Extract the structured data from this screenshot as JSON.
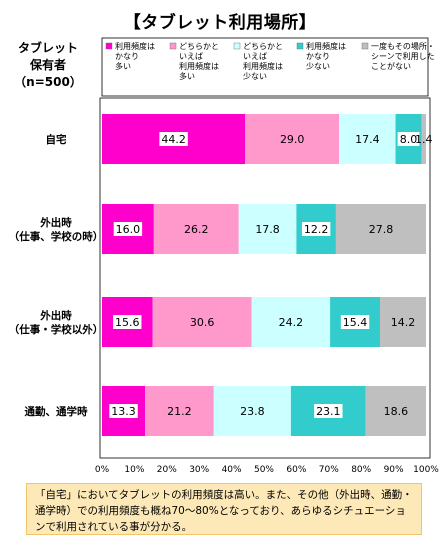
{
  "title": "【タブレット利用場所】",
  "holder_label": "タブレット\n保有者\n（n=500）",
  "note": "「自宅」においてタブレットの利用頻度は高い。また、その他（外出時、通勤・通学時）での利用頻度も概ね70～80%となっており、あらゆるシチュエーションで利用されている事が分かる。",
  "chart_data": {
    "type": "bar",
    "orientation": "horizontal-stacked-100",
    "categories": [
      [
        "自宅"
      ],
      [
        "外出時",
        "（仕事、学校の時）"
      ],
      [
        "外出時",
        "（仕事・学校以外）"
      ],
      [
        "通勤、通学時"
      ]
    ],
    "series": [
      {
        "name": "利用頻度はかなり多い",
        "legend_lines": [
          "利用頻度は",
          "かなり",
          "多い"
        ],
        "color": "#ff00cc",
        "values": [
          44.2,
          16.0,
          15.6,
          13.3
        ]
      },
      {
        "name": "どちらかといえば利用頻度は多い",
        "legend_lines": [
          "どちらかと",
          "いえば",
          "利用頻度は",
          "多い"
        ],
        "color": "#ff99cc",
        "values": [
          29.0,
          26.2,
          30.6,
          21.2
        ]
      },
      {
        "name": "どちらかといえば利用頻度は少ない",
        "legend_lines": [
          "どちらかと",
          "いえば",
          "利用頻度は",
          "少ない"
        ],
        "color": "#ccffff",
        "values": [
          17.4,
          17.8,
          24.2,
          23.8
        ]
      },
      {
        "name": "利用頻度はかなり少ない",
        "legend_lines": [
          "利用頻度は",
          "かなり",
          "少ない"
        ],
        "color": "#33cccc",
        "values": [
          8.0,
          12.2,
          15.4,
          23.1
        ]
      },
      {
        "name": "一度もその場所・シーンで利用したことがない",
        "legend_lines": [
          "一度もその場所・",
          "シーンで利用した",
          "ことがない"
        ],
        "color": "#bfbfbf",
        "values": [
          1.4,
          27.8,
          14.2,
          18.6
        ]
      }
    ],
    "value_labels": [
      [
        "44.2",
        "29.0",
        "17.4",
        "8.0",
        "1.4"
      ],
      [
        "16.0",
        "26.2",
        "17.8",
        "12.2",
        "27.8"
      ],
      [
        "15.6",
        "30.6",
        "24.2",
        "15.4",
        "14.2"
      ],
      [
        "13.3",
        "21.2",
        "23.8",
        "23.1",
        "18.6"
      ]
    ],
    "xlim": [
      0,
      100
    ],
    "xticks": [
      "0%",
      "10%",
      "20%",
      "30%",
      "40%",
      "50%",
      "60%",
      "70%",
      "80%",
      "90%",
      "100%"
    ],
    "legend": "top",
    "grid": false
  }
}
